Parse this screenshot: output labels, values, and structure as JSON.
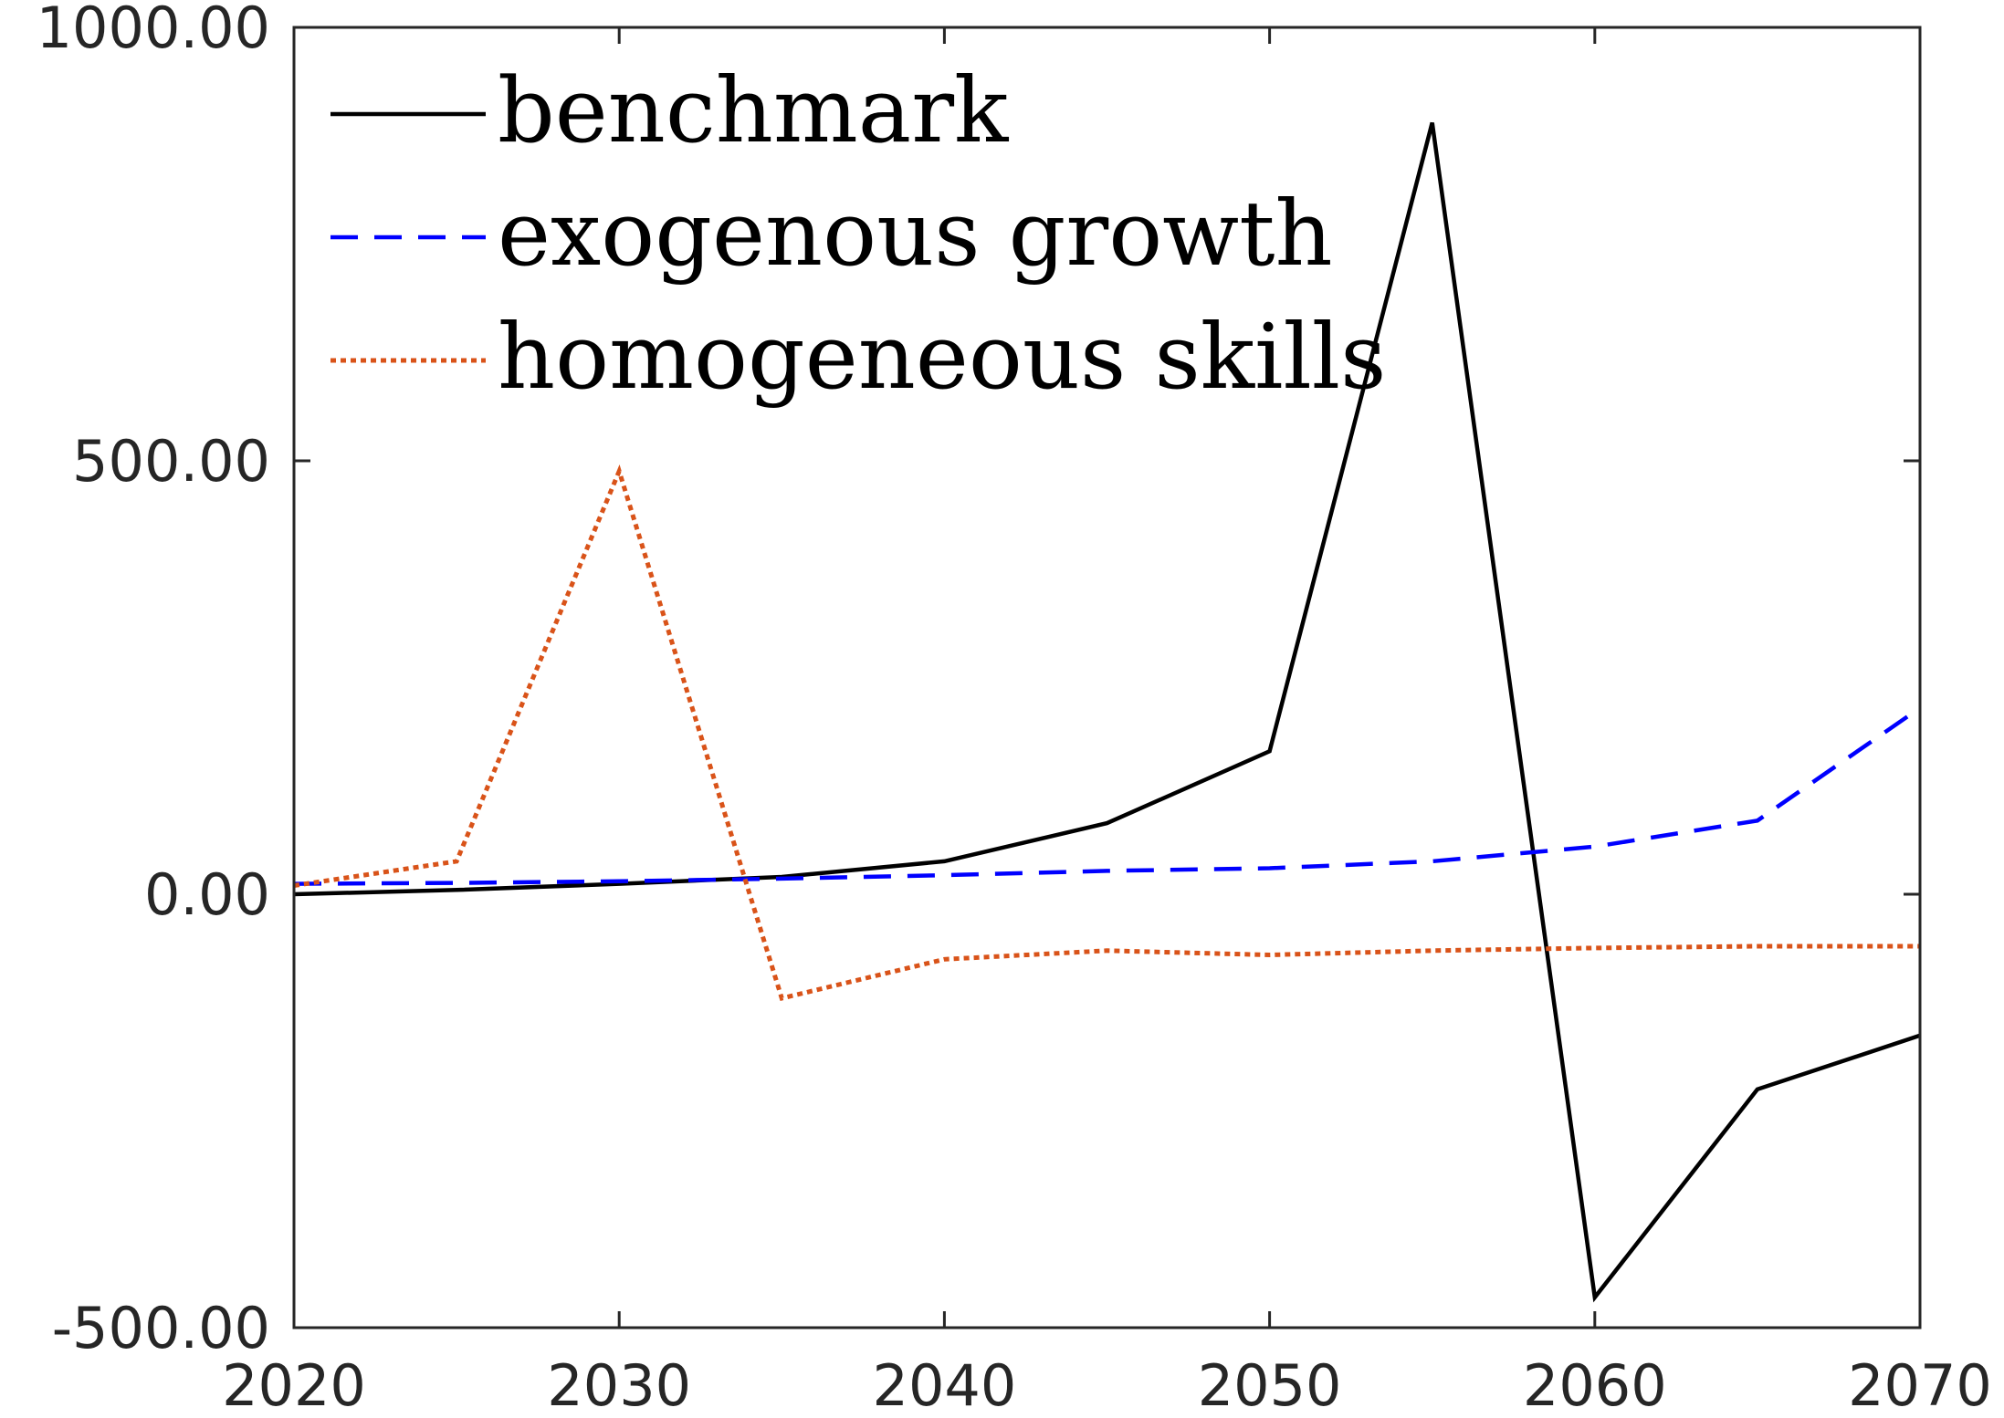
{
  "chart_data": {
    "type": "line",
    "title": "",
    "xlabel": "",
    "ylabel": "",
    "x": [
      2020,
      2025,
      2030,
      2035,
      2040,
      2045,
      2050,
      2055,
      2060,
      2065,
      2070
    ],
    "xlim": [
      2020,
      2070
    ],
    "ylim": [
      -500,
      1000
    ],
    "x_ticks": [
      2020,
      2030,
      2040,
      2050,
      2060,
      2070
    ],
    "x_tick_labels": [
      "2020",
      "2030",
      "2040",
      "2050",
      "2060",
      "2070"
    ],
    "y_ticks": [
      -500,
      0,
      500,
      1000
    ],
    "y_tick_labels": [
      "-500.00",
      "0.00",
      "500.00",
      "1000.00"
    ],
    "grid": false,
    "legend_position": "top-left",
    "series": [
      {
        "name": "benchmark",
        "color": "#000000",
        "style": "solid",
        "values": [
          0,
          5,
          12,
          20,
          38,
          82,
          165,
          890,
          -465,
          -225,
          -163
        ]
      },
      {
        "name": "exogenous growth",
        "color": "#0000ff",
        "style": "dashed",
        "values": [
          12,
          13,
          15,
          18,
          22,
          27,
          30,
          38,
          55,
          85,
          215
        ]
      },
      {
        "name": "homogeneous skills",
        "color": "#d95319",
        "style": "dotted",
        "values": [
          10,
          38,
          488,
          -120,
          -75,
          -65,
          -70,
          -65,
          -62,
          -60,
          -60
        ]
      }
    ]
  }
}
